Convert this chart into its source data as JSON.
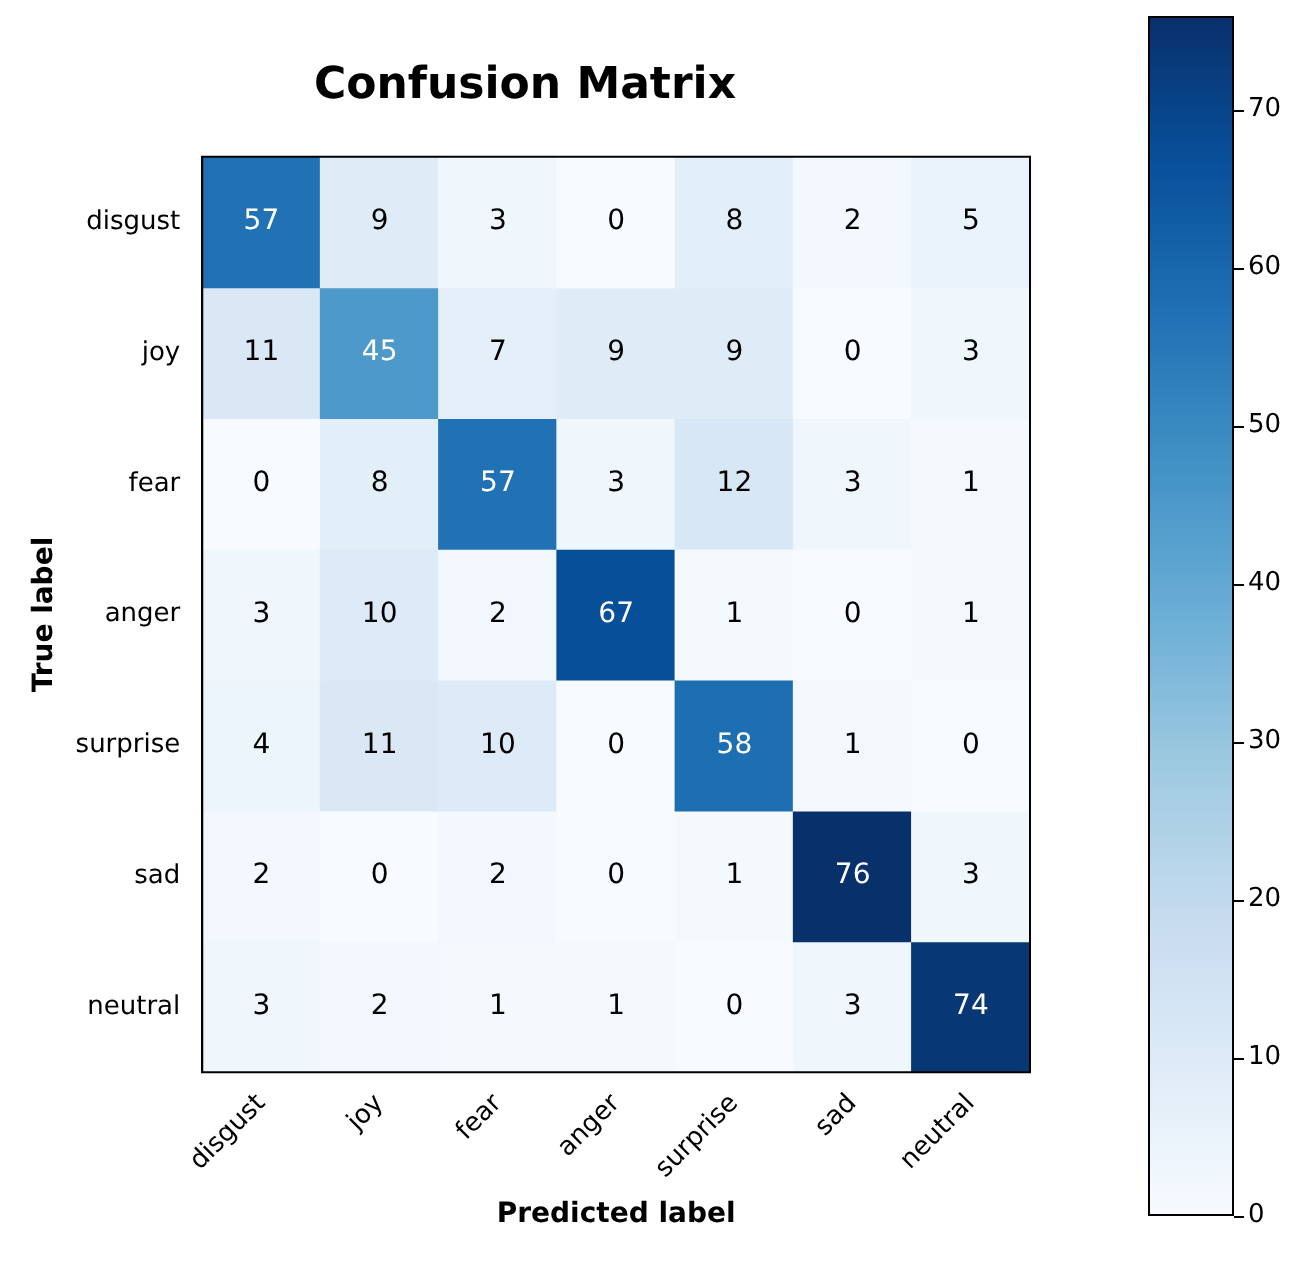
{
  "chart_data": {
    "type": "heatmap",
    "title": "Confusion Matrix",
    "xlabel": "Predicted label",
    "ylabel": "True label",
    "categories": [
      "disgust",
      "joy",
      "fear",
      "anger",
      "surprise",
      "sad",
      "neutral"
    ],
    "y_categories": [
      "disgust",
      "joy",
      "fear",
      "anger",
      "surprise",
      "sad",
      "neutral"
    ],
    "cells": [
      [
        57,
        9,
        3,
        0,
        8,
        2,
        5
      ],
      [
        11,
        45,
        7,
        9,
        9,
        0,
        3
      ],
      [
        0,
        8,
        57,
        3,
        12,
        3,
        1
      ],
      [
        3,
        10,
        2,
        67,
        1,
        0,
        1
      ],
      [
        4,
        11,
        10,
        0,
        58,
        1,
        0
      ],
      [
        2,
        0,
        2,
        0,
        1,
        76,
        3
      ],
      [
        3,
        2,
        1,
        1,
        0,
        3,
        74
      ]
    ],
    "clim": [
      0,
      76
    ],
    "cticks": [
      0,
      10,
      20,
      30,
      40,
      50,
      60,
      70
    ],
    "data_labels": true
  }
}
